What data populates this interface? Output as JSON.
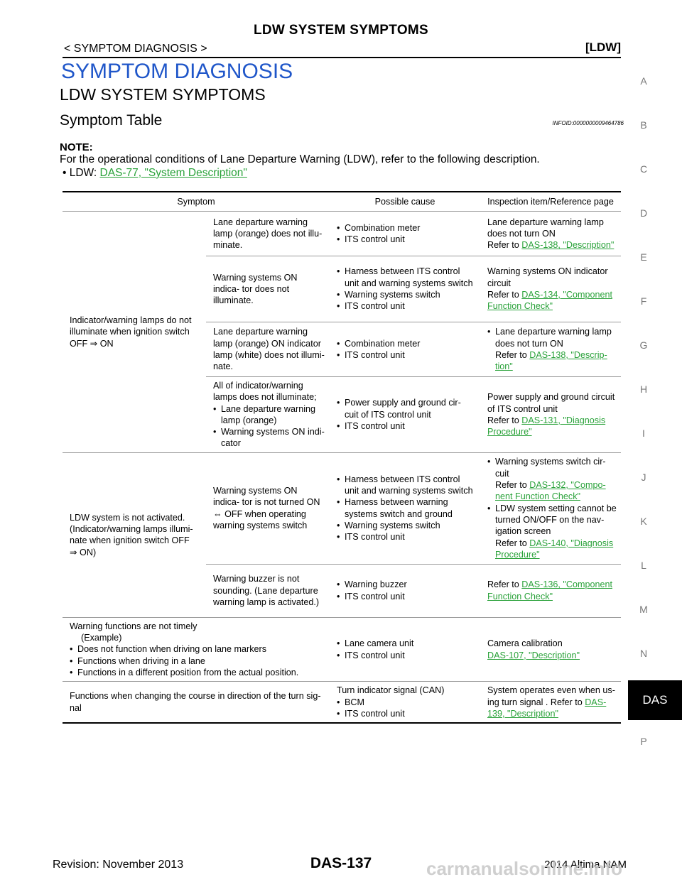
{
  "header": {
    "title": "LDW SYSTEM SYMPTOMS",
    "left": "< SYMPTOM DIAGNOSIS >",
    "right": "[LDW]"
  },
  "section_title": "SYMPTOM DIAGNOSIS",
  "subsection_title": "LDW SYSTEM SYMPTOMS",
  "table_title": "Symptom Table",
  "infoid": "INFOID:0000000009464786",
  "note": {
    "label": "NOTE:",
    "text": "For the operational conditions of Lane Departure Warning (LDW), refer to the following description.",
    "item_prefix": "• LDW: ",
    "item_link": "DAS-77, \"System Description\""
  },
  "table": {
    "headers": [
      "Symptom",
      "Possible cause",
      "Inspection item/Reference page"
    ],
    "group1_symptom_lines": [
      "Indicator/warning lamps do not",
      "illuminate when ignition switch",
      "OFF ⇒ ON"
    ],
    "group2_symptom_lines": [
      "LDW system is not activated.",
      "(Indicator/warning lamps illumi-",
      "nate when ignition switch OFF",
      "⇒ ON)"
    ],
    "r1": {
      "sub": "Lane departure warning lamp (orange) does not illu- minate.",
      "cause": [
        "Combination meter",
        "ITS control unit"
      ],
      "insp_text": "Lane departure warning lamp does not turn ON",
      "refer": "Refer to ",
      "link": "DAS-138, \"Description\""
    },
    "r2": {
      "sub": "Warning systems ON indica- tor does not illuminate.",
      "cause": [
        "Harness between ITS control unit and warning systems switch",
        "Warning systems switch",
        "ITS control unit"
      ],
      "insp_text": "Warning systems ON indicator circuit",
      "refer": "Refer to ",
      "link": "DAS-134, \"Component Function Check\""
    },
    "r3": {
      "sub": "Lane departure warning lamp (orange) ON indicator lamp (white) does not illumi- nate.",
      "cause": [
        "Combination meter",
        "ITS control unit"
      ],
      "insp_item": "Lane departure warning lamp does not turn ON",
      "refer": "Refer to ",
      "link": "DAS-138, \"Descrip- tion\""
    },
    "r4": {
      "sub_intro": "All of indicator/warning lamps does not illuminate;",
      "sub_items": [
        "Lane departure warning lamp (orange)",
        "Warning systems ON indi- cator"
      ],
      "cause": [
        "Power supply and ground cir- cuit of ITS control unit",
        "ITS control unit"
      ],
      "insp_text": "Power supply and ground circuit of ITS control unit",
      "refer": "Refer to ",
      "link": "DAS-131, \"Diagnosis Procedure\""
    },
    "r5": {
      "sub": "Warning systems ON indica- tor is not turned ON ⇔ OFF when operating warning systems switch",
      "cause": [
        "Harness between ITS control unit and warning systems switch",
        "Harness between warning systems switch and ground",
        "Warning systems switch",
        "ITS control unit"
      ],
      "insp1_text": "Warning systems switch cir- cuit",
      "insp1_refer": "Refer to ",
      "insp1_link": "DAS-132, \"Compo- nent Function Check\"",
      "insp2_text": "LDW system setting cannot be turned ON/OFF on the nav- igation screen",
      "insp2_refer": "Refer to ",
      "insp2_link": "DAS-140, \"Diagnosis Procedure\""
    },
    "r6": {
      "sub": "Warning buzzer is not sounding. (Lane departure warning lamp is activated.)",
      "cause": [
        "Warning buzzer",
        "ITS control unit"
      ],
      "refer": "Refer to ",
      "link": "DAS-136, \"Component Function Check\""
    },
    "r7": {
      "symptom_title": "Warning functions are not timely",
      "symptom_example": "(Example)",
      "symptom_items": [
        "Does not function when driving on lane markers",
        "Functions when driving in a lane",
        "Functions in a different position from the actual position."
      ],
      "cause": [
        "Lane camera unit",
        "ITS control unit"
      ],
      "insp_text": "Camera calibration",
      "link": "DAS-107, \"Description\""
    },
    "r8": {
      "symptom": "Functions when changing the course in direction of the turn sig- nal",
      "cause_intro": "Turn indicator signal (CAN)",
      "cause": [
        "BCM",
        "ITS control unit"
      ],
      "insp_text": "System operates even when us- ing turn signal . Refer to ",
      "link": "DAS- 139, \"Description\""
    }
  },
  "sidebar_letters": [
    "A",
    "B",
    "C",
    "D",
    "E",
    "F",
    "G",
    "H",
    "I",
    "J",
    "K",
    "L",
    "M",
    "N",
    "P"
  ],
  "sidebar_active": "DAS",
  "footer": {
    "left": "Revision: November 2013",
    "center": "DAS-137",
    "right": "2014 Altima NAM",
    "watermark": "carmanualsonline.info"
  }
}
